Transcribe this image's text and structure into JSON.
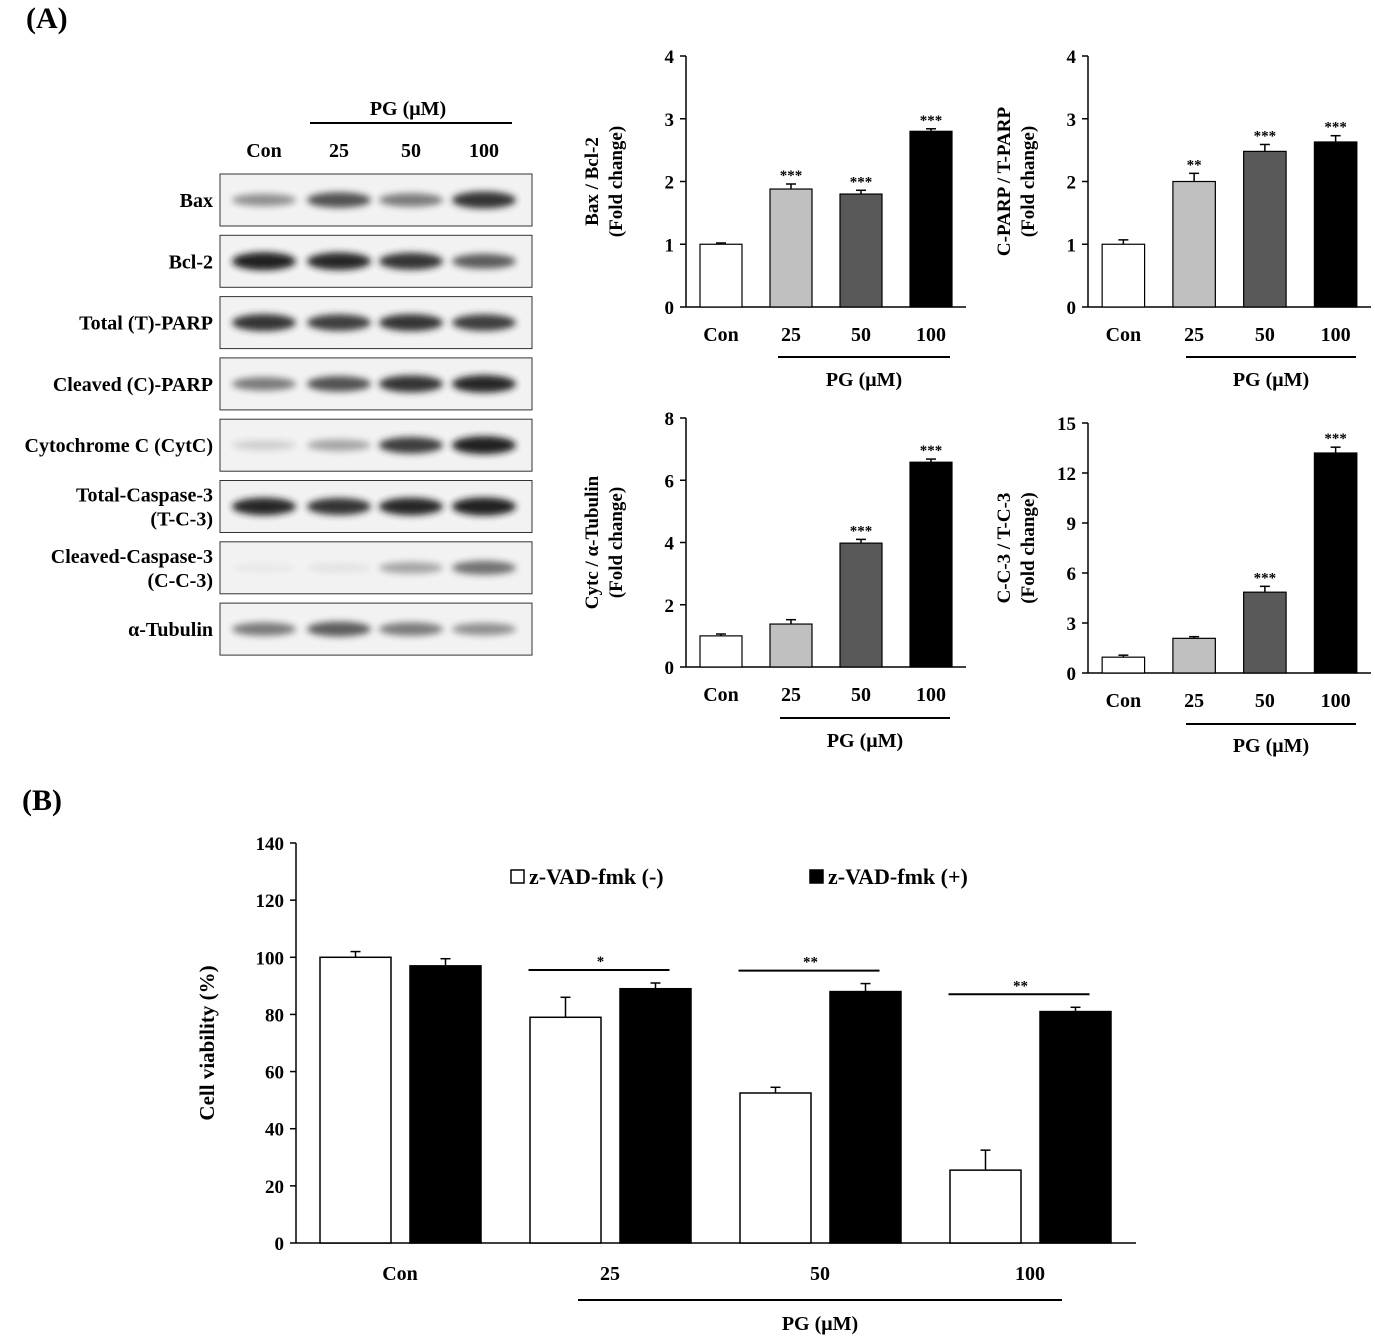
{
  "panels": {
    "a_label": "(A)",
    "b_label": "(B)"
  },
  "blot": {
    "header_group": "PG (μM)",
    "lanes": [
      "Con",
      "25",
      "50",
      "100"
    ],
    "rows": [
      {
        "label_lines": [
          "Bax"
        ],
        "intensity": [
          0.45,
          0.75,
          0.55,
          0.9
        ]
      },
      {
        "label_lines": [
          "Bcl-2"
        ],
        "intensity": [
          1.0,
          0.95,
          0.9,
          0.7
        ]
      },
      {
        "label_lines": [
          "Total (T)-PARP"
        ],
        "intensity": [
          0.9,
          0.85,
          0.9,
          0.85
        ]
      },
      {
        "label_lines": [
          "Cleaved (C)-PARP"
        ],
        "intensity": [
          0.55,
          0.75,
          0.9,
          0.95
        ]
      },
      {
        "label_lines": [
          "Cytochrome C (CytC)"
        ],
        "intensity": [
          0.15,
          0.35,
          0.85,
          1.0
        ]
      },
      {
        "label_lines": [
          "Total-Caspase-3",
          "(T-C-3)"
        ],
        "intensity": [
          0.95,
          0.9,
          0.95,
          1.0
        ]
      },
      {
        "label_lines": [
          "Cleaved-Caspase-3",
          "(C-C-3)"
        ],
        "intensity": [
          0.02,
          0.05,
          0.35,
          0.6
        ]
      },
      {
        "label_lines": [
          "α-Tubulin"
        ],
        "intensity": [
          0.55,
          0.7,
          0.55,
          0.45
        ]
      }
    ]
  },
  "chart_data": [
    {
      "type": "bar",
      "categories": [
        "Con",
        "25",
        "50",
        "100"
      ],
      "values": [
        1.0,
        1.88,
        1.8,
        2.8
      ],
      "errors": [
        0.02,
        0.08,
        0.06,
        0.04
      ],
      "significance": [
        "",
        "***",
        "***",
        "***"
      ],
      "ylabel_lines": [
        "Bax / Bcl-2",
        "(Fold change)"
      ],
      "xgroup_label": "PG (μM)",
      "ylim": [
        0,
        4
      ],
      "yticks": [
        0,
        1,
        2,
        3,
        4
      ],
      "colors": [
        "#ffffff",
        "#c0c0c0",
        "#595959",
        "#000000"
      ]
    },
    {
      "type": "bar",
      "categories": [
        "Con",
        "25",
        "50",
        "100"
      ],
      "values": [
        1.0,
        2.0,
        2.48,
        2.63
      ],
      "errors": [
        0.07,
        0.13,
        0.11,
        0.1
      ],
      "significance": [
        "",
        "**",
        "***",
        "***"
      ],
      "ylabel_lines": [
        "C-PARP / T-PARP",
        "(Fold change)"
      ],
      "xgroup_label": "PG (μM)",
      "ylim": [
        0,
        4
      ],
      "yticks": [
        0,
        1,
        2,
        3,
        4
      ],
      "colors": [
        "#ffffff",
        "#c0c0c0",
        "#595959",
        "#000000"
      ]
    },
    {
      "type": "bar",
      "categories": [
        "Con",
        "25",
        "50",
        "100"
      ],
      "values": [
        1.0,
        1.38,
        3.98,
        6.58
      ],
      "errors": [
        0.06,
        0.14,
        0.12,
        0.1
      ],
      "significance": [
        "",
        "",
        "***",
        "***"
      ],
      "ylabel_lines": [
        "Cytc / α-Tubulin",
        "(Fold change)"
      ],
      "xgroup_label": "PG (μM)",
      "ylim": [
        0,
        8
      ],
      "yticks": [
        0,
        2,
        4,
        6,
        8
      ],
      "colors": [
        "#ffffff",
        "#c0c0c0",
        "#595959",
        "#000000"
      ]
    },
    {
      "type": "bar",
      "categories": [
        "Con",
        "25",
        "50",
        "100"
      ],
      "values": [
        0.95,
        2.08,
        4.85,
        13.2
      ],
      "errors": [
        0.12,
        0.1,
        0.35,
        0.35
      ],
      "significance": [
        "",
        "",
        "***",
        "***"
      ],
      "ylabel_lines": [
        "C-C-3 / T-C-3",
        "(Fold change)"
      ],
      "xgroup_label": "PG (μM)",
      "ylim": [
        0,
        15
      ],
      "yticks": [
        0,
        3,
        6,
        9,
        12,
        15
      ],
      "colors": [
        "#ffffff",
        "#c0c0c0",
        "#595959",
        "#000000"
      ]
    },
    {
      "type": "bar",
      "categories": [
        "Con",
        "25",
        "50",
        "100"
      ],
      "series": [
        {
          "name": "z-VAD-fmk (-)",
          "values": [
            100,
            79,
            52.5,
            25.5
          ],
          "errors": [
            2,
            7,
            2,
            7
          ],
          "color": "#ffffff"
        },
        {
          "name": "z-VAD-fmk (+)",
          "values": [
            97,
            89,
            88,
            81
          ],
          "errors": [
            2.5,
            2,
            2.8,
            1.5
          ],
          "color": "#000000"
        }
      ],
      "significance": [
        "",
        "*",
        "**",
        "**"
      ],
      "ylabel": "Cell viability (%)",
      "xgroup_label": "PG (μM)",
      "ylim": [
        0,
        140
      ],
      "yticks": [
        0,
        20,
        40,
        60,
        80,
        100,
        120,
        140
      ],
      "legend_position": "top"
    }
  ]
}
